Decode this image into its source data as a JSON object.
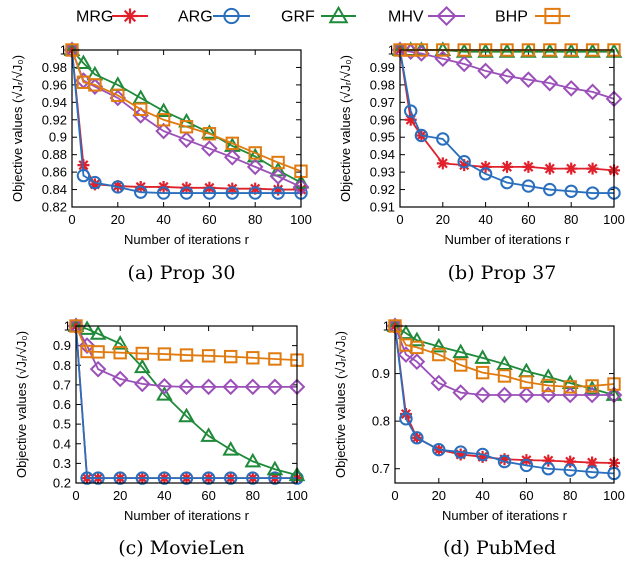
{
  "legend": [
    {
      "name": "MRG",
      "color": "#e0202a",
      "marker": "asterisk-icon"
    },
    {
      "name": "ARG",
      "color": "#2a6fbd",
      "marker": "circle-icon"
    },
    {
      "name": "GRF",
      "color": "#1f8a3a",
      "marker": "triangle-icon"
    },
    {
      "name": "MHV",
      "color": "#9b4fb8",
      "marker": "diamond-icon"
    },
    {
      "name": "BHP",
      "color": "#e07b10",
      "marker": "square-icon"
    }
  ],
  "chart_data": [
    {
      "type": "line",
      "caption": "(a) Prop 30",
      "xlabel": "Number of iterations r",
      "ylabel": "Objective values (√Jᵣ/√J₀)",
      "xlim": [
        0,
        100
      ],
      "ylim": [
        0.82,
        1.0
      ],
      "xticks": [
        "0",
        "20",
        "40",
        "60",
        "80",
        "100"
      ],
      "yticks": [
        "0.82",
        "0.84",
        "0.86",
        "0.88",
        "0.9",
        "0.92",
        "0.94",
        "0.96",
        "0.98",
        "1"
      ],
      "ytick_values": [
        0.82,
        0.84,
        0.86,
        0.88,
        0.9,
        0.92,
        0.94,
        0.96,
        0.98,
        1.0
      ],
      "x": [
        0,
        5,
        10,
        20,
        30,
        40,
        50,
        60,
        70,
        80,
        90,
        100
      ],
      "series": [
        {
          "name": "MRG",
          "values": [
            1.0,
            0.868,
            0.846,
            0.844,
            0.843,
            0.843,
            0.842,
            0.842,
            0.841,
            0.841,
            0.84,
            0.84
          ]
        },
        {
          "name": "ARG",
          "values": [
            1.0,
            0.856,
            0.848,
            0.843,
            0.837,
            0.836,
            0.836,
            0.836,
            0.836,
            0.836,
            0.836,
            0.836
          ]
        },
        {
          "name": "GRF",
          "values": [
            1.0,
            0.985,
            0.972,
            0.96,
            0.945,
            0.93,
            0.918,
            0.905,
            0.89,
            0.878,
            0.862,
            0.848
          ]
        },
        {
          "name": "MHV",
          "values": [
            1.0,
            0.965,
            0.958,
            0.945,
            0.925,
            0.907,
            0.897,
            0.887,
            0.877,
            0.866,
            0.855,
            0.843
          ]
        },
        {
          "name": "BHP",
          "values": [
            1.0,
            0.963,
            0.96,
            0.948,
            0.932,
            0.92,
            0.912,
            0.904,
            0.893,
            0.882,
            0.871,
            0.861
          ]
        }
      ]
    },
    {
      "type": "line",
      "caption": "(b) Prop 37",
      "xlabel": "Number of iterations r",
      "ylabel": "Objective values (√Jᵣ/√J₀)",
      "xlim": [
        0,
        100
      ],
      "ylim": [
        0.91,
        1.0
      ],
      "xticks": [
        "0",
        "20",
        "40",
        "60",
        "80",
        "100"
      ],
      "yticks": [
        "0.91",
        "0.92",
        "0.93",
        "0.94",
        "0.95",
        "0.96",
        "0.97",
        "0.98",
        "0.99",
        "1"
      ],
      "ytick_values": [
        0.91,
        0.92,
        0.93,
        0.94,
        0.95,
        0.96,
        0.97,
        0.98,
        0.99,
        1.0
      ],
      "x": [
        0,
        5,
        10,
        20,
        30,
        40,
        50,
        60,
        70,
        80,
        90,
        100
      ],
      "series": [
        {
          "name": "MRG",
          "values": [
            1.0,
            0.96,
            0.951,
            0.935,
            0.934,
            0.933,
            0.933,
            0.933,
            0.932,
            0.932,
            0.932,
            0.931
          ]
        },
        {
          "name": "ARG",
          "values": [
            1.0,
            0.965,
            0.951,
            0.949,
            0.936,
            0.929,
            0.924,
            0.922,
            0.92,
            0.919,
            0.918,
            0.918
          ]
        },
        {
          "name": "GRF",
          "values": [
            1.0,
            1.0,
            1.0,
            1.0,
            0.999,
            0.999,
            0.999,
            0.999,
            0.999,
            0.999,
            0.999,
            0.999
          ]
        },
        {
          "name": "MHV",
          "values": [
            1.0,
            0.999,
            0.998,
            0.995,
            0.992,
            0.988,
            0.985,
            0.983,
            0.981,
            0.978,
            0.976,
            0.972
          ]
        },
        {
          "name": "BHP",
          "values": [
            1.0,
            1.0,
            1.0,
            1.0,
            1.0,
            1.0,
            1.0,
            1.0,
            1.0,
            1.0,
            1.0,
            1.0
          ]
        }
      ]
    },
    {
      "type": "line",
      "caption": "(c) MovieLen",
      "xlabel": "Number of iterations r",
      "ylabel": "Objective values (√Jᵣ/√J₀)",
      "xlim": [
        0,
        100
      ],
      "ylim": [
        0.2,
        1.0
      ],
      "xticks": [
        "0",
        "20",
        "40",
        "60",
        "80",
        "100"
      ],
      "yticks": [
        "0.2",
        "0.3",
        "0.4",
        "0.5",
        "0.6",
        "0.7",
        "0.8",
        "0.9",
        "1"
      ],
      "ytick_values": [
        0.2,
        0.3,
        0.4,
        0.5,
        0.6,
        0.7,
        0.8,
        0.9,
        1.0
      ],
      "x": [
        0,
        5,
        10,
        20,
        30,
        40,
        50,
        60,
        70,
        80,
        90,
        100
      ],
      "series": [
        {
          "name": "MRG",
          "values": [
            1.0,
            0.225,
            0.225,
            0.225,
            0.225,
            0.225,
            0.225,
            0.225,
            0.225,
            0.225,
            0.225,
            0.225
          ]
        },
        {
          "name": "ARG",
          "values": [
            1.0,
            0.225,
            0.225,
            0.225,
            0.225,
            0.225,
            0.225,
            0.225,
            0.225,
            0.225,
            0.225,
            0.225
          ]
        },
        {
          "name": "GRF",
          "values": [
            1.0,
            0.985,
            0.96,
            0.91,
            0.79,
            0.65,
            0.54,
            0.44,
            0.37,
            0.31,
            0.27,
            0.24
          ]
        },
        {
          "name": "MHV",
          "values": [
            1.0,
            0.9,
            0.78,
            0.73,
            0.705,
            0.693,
            0.69,
            0.69,
            0.69,
            0.69,
            0.69,
            0.69
          ]
        },
        {
          "name": "BHP",
          "values": [
            1.0,
            0.87,
            0.868,
            0.864,
            0.86,
            0.857,
            0.852,
            0.848,
            0.844,
            0.838,
            0.832,
            0.826
          ]
        }
      ]
    },
    {
      "type": "line",
      "caption": "(d) PubMed",
      "xlabel": "Number of iterations r",
      "ylabel": "Objective values (√Jᵣ/√J₀)",
      "xlim": [
        0,
        100
      ],
      "ylim": [
        0.67,
        1.0
      ],
      "xticks": [
        "0",
        "20",
        "40",
        "60",
        "80",
        "100"
      ],
      "yticks": [
        "0.7",
        "0.8",
        "0.9",
        "1"
      ],
      "ytick_values": [
        0.7,
        0.8,
        0.9,
        1.0
      ],
      "x": [
        0,
        5,
        10,
        20,
        30,
        40,
        50,
        60,
        70,
        80,
        90,
        100
      ],
      "series": [
        {
          "name": "MRG",
          "values": [
            1.0,
            0.815,
            0.765,
            0.74,
            0.73,
            0.725,
            0.72,
            0.718,
            0.717,
            0.715,
            0.713,
            0.712
          ]
        },
        {
          "name": "ARG",
          "values": [
            1.0,
            0.805,
            0.765,
            0.74,
            0.735,
            0.73,
            0.715,
            0.707,
            0.7,
            0.697,
            0.693,
            0.69
          ]
        },
        {
          "name": "GRF",
          "values": [
            1.0,
            0.985,
            0.97,
            0.957,
            0.945,
            0.933,
            0.92,
            0.905,
            0.893,
            0.88,
            0.868,
            0.855
          ]
        },
        {
          "name": "MHV",
          "values": [
            1.0,
            0.94,
            0.925,
            0.88,
            0.86,
            0.855,
            0.855,
            0.855,
            0.855,
            0.855,
            0.855,
            0.855
          ]
        },
        {
          "name": "BHP",
          "values": [
            1.0,
            0.96,
            0.955,
            0.94,
            0.918,
            0.902,
            0.895,
            0.882,
            0.875,
            0.872,
            0.874,
            0.878
          ]
        }
      ]
    }
  ]
}
